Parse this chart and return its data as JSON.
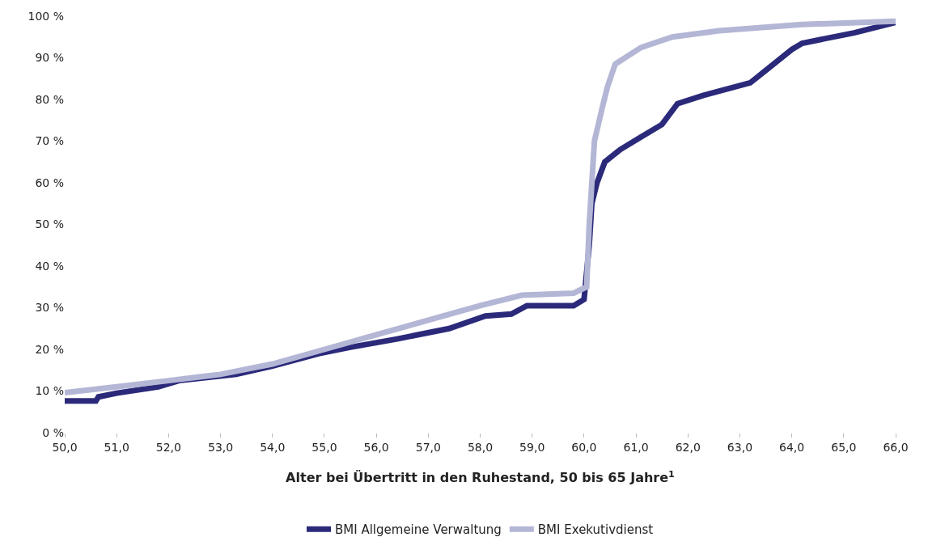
{
  "chart_data": {
    "type": "line",
    "xlabel": "Alter bei Übertritt in den Ruhestand, 50 bis 65 Jahre$^{1}$",
    "xlim": [
      50,
      66
    ],
    "ylim": [
      0,
      100
    ],
    "xticks": [
      {
        "value": 50,
        "label": "50,0"
      },
      {
        "value": 51,
        "label": "51,0"
      },
      {
        "value": 52,
        "label": "52,0"
      },
      {
        "value": 53,
        "label": "53,0"
      },
      {
        "value": 54,
        "label": "54,0"
      },
      {
        "value": 55,
        "label": "55,0"
      },
      {
        "value": 56,
        "label": "56,0"
      },
      {
        "value": 57,
        "label": "57,0"
      },
      {
        "value": 58,
        "label": "58,0"
      },
      {
        "value": 59,
        "label": "59,0"
      },
      {
        "value": 60,
        "label": "60,0"
      },
      {
        "value": 61,
        "label": "61,0"
      },
      {
        "value": 62,
        "label": "62,0"
      },
      {
        "value": 63,
        "label": "63,0"
      },
      {
        "value": 64,
        "label": "64,0"
      },
      {
        "value": 65,
        "label": "65,0"
      },
      {
        "value": 66,
        "label": "66,0"
      }
    ],
    "yticks": [
      {
        "value": 0,
        "label": "0 %"
      },
      {
        "value": 10,
        "label": "10 %"
      },
      {
        "value": 20,
        "label": "20 %"
      },
      {
        "value": 30,
        "label": "30 %"
      },
      {
        "value": 40,
        "label": "40 %"
      },
      {
        "value": 50,
        "label": "50 %"
      },
      {
        "value": 60,
        "label": "60 %"
      },
      {
        "value": 70,
        "label": "70 %"
      },
      {
        "value": 80,
        "label": "80 %"
      },
      {
        "value": 90,
        "label": "90 %"
      },
      {
        "value": 100,
        "label": "100 %"
      }
    ],
    "legend": "bottom",
    "marker": "none",
    "line_style": "solid",
    "series": [
      {
        "name": "BMI Allgemeine Verwaltung",
        "color": "#2b2a7a",
        "x": [
          50.0,
          50.6,
          50.65,
          51.0,
          51.8,
          52.2,
          53.3,
          54.0,
          54.9,
          55.5,
          56.4,
          57.4,
          58.1,
          58.6,
          58.9,
          59.8,
          60.0,
          60.1,
          60.15,
          60.25,
          60.4,
          60.7,
          61.1,
          61.5,
          61.8,
          62.3,
          63.2,
          63.5,
          64.0,
          64.2,
          65.2,
          66.0
        ],
        "values": [
          7.6,
          7.6,
          8.6,
          9.5,
          11,
          12.5,
          14,
          16,
          19,
          20.5,
          22.5,
          25,
          28,
          28.5,
          30.5,
          30.5,
          32,
          45,
          55,
          60,
          65,
          68,
          71,
          74,
          79,
          81,
          84,
          87,
          92,
          93.5,
          96,
          98.5
        ]
      },
      {
        "name": "BMI Exekutivdienst",
        "color": "#b4b6d6",
        "x": [
          50.0,
          51.0,
          52.0,
          53.0,
          54.0,
          55.0,
          56.0,
          57.0,
          58.0,
          58.8,
          59.8,
          60.05,
          60.1,
          60.2,
          60.35,
          60.45,
          60.6,
          61.1,
          61.7,
          62.6,
          64.2,
          66.0
        ],
        "values": [
          9.6,
          11,
          12.5,
          14,
          16.5,
          20,
          23.5,
          27,
          30.5,
          33,
          33.5,
          35,
          50,
          70,
          78,
          83,
          88.5,
          92.5,
          95,
          96.5,
          98,
          98.8
        ]
      }
    ]
  }
}
